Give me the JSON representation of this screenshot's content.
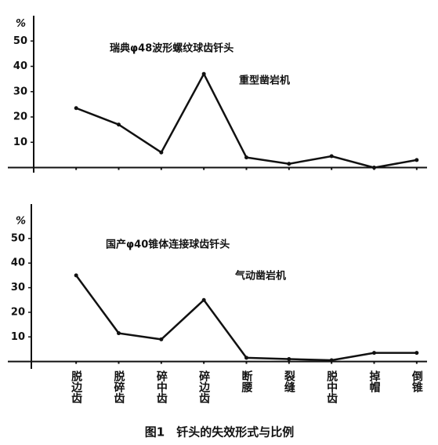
{
  "chart_data": [
    {
      "type": "line",
      "title": "瑞典φ48波形螺纹球齿钎头",
      "annotation": "重型凿岩机",
      "ylabel": "%",
      "values": [
        23.5,
        17,
        6,
        37,
        4,
        1.5,
        4.5,
        0,
        3
      ],
      "color": "#111111",
      "ylim": [
        -2,
        60
      ],
      "yticks": [
        10,
        20,
        30,
        40,
        50
      ]
    },
    {
      "type": "line",
      "title": "国产φ40锥体连接球齿钎头",
      "annotation": "气动凿岩机",
      "ylabel": "%",
      "categories": [
        "脱边齿",
        "脱碎齿",
        "碎中齿",
        "碎边齿",
        "断腰",
        "裂缝",
        "脱中齿",
        "掉帽",
        "倒锥"
      ],
      "values": [
        35,
        11.5,
        9,
        25,
        1.5,
        1,
        0.5,
        3.5,
        3.5
      ],
      "color": "#111111",
      "ylim": [
        -3,
        64
      ],
      "yticks": [
        10,
        20,
        30,
        40,
        50
      ]
    }
  ],
  "caption": "图1　钎头的失效形式与比例"
}
